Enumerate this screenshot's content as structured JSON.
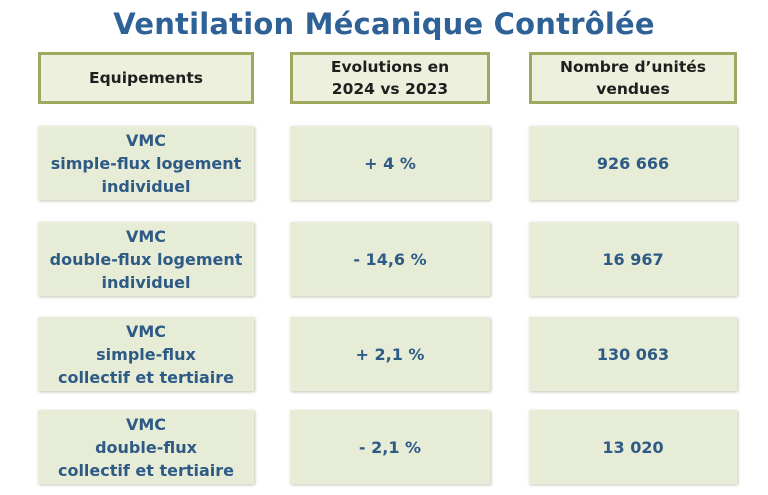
{
  "title": "Ventilation Mécanique Contrôlée",
  "headers": {
    "equipements": "Equipements",
    "evolutions": "Evolutions en\n2024 vs 2023",
    "unites": "Nombre d’unités\nvendues"
  },
  "rows": [
    {
      "equipement": "VMC\nsimple-flux logement\nindividuel",
      "evolution": "+ 4 %",
      "unites": "926 666"
    },
    {
      "equipement": "VMC\ndouble-flux logement\nindividuel",
      "evolution": "- 14,6 %",
      "unites": "16 967"
    },
    {
      "equipement": "VMC\nsimple-flux\ncollectif et tertiaire",
      "evolution": "+ 2,1 %",
      "unites": "130 063"
    },
    {
      "equipement": "VMC\ndouble-flux\ncollectif et tertiaire",
      "evolution": "- 2,1 %",
      "unites": "13 020"
    }
  ]
}
